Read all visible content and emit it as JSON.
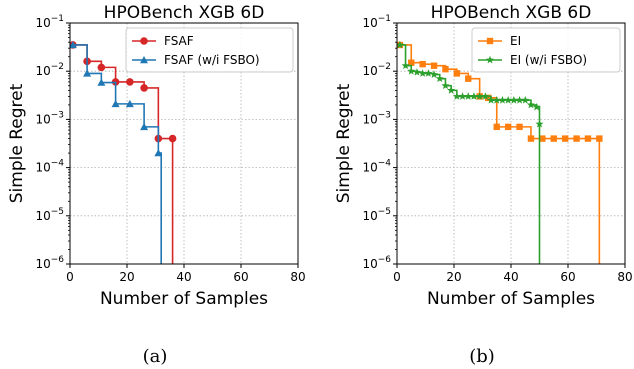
{
  "chart_data": [
    {
      "type": "line",
      "panel": "a",
      "title": "HPOBench XGB 6D",
      "xlabel": "Number of Samples",
      "ylabel": "Simple Regret",
      "xlim": [
        0,
        80
      ],
      "ylim": [
        1e-06,
        0.1
      ],
      "yscale": "log",
      "grid": true,
      "legend_position": "top-right",
      "xticks": [
        "0",
        "20",
        "40",
        "60",
        "80"
      ],
      "yticks": [
        {
          "base": "10",
          "exp": "−1"
        },
        {
          "base": "10",
          "exp": "−2"
        },
        {
          "base": "10",
          "exp": "−3"
        },
        {
          "base": "10",
          "exp": "−4"
        },
        {
          "base": "10",
          "exp": "−5"
        },
        {
          "base": "10",
          "exp": "−6"
        }
      ],
      "caption": "(a)",
      "series": [
        {
          "name": "FSAF",
          "color": "#d62728",
          "marker": "circle",
          "x": [
            1,
            6,
            11,
            16,
            21,
            26,
            31,
            36
          ],
          "y": [
            0.035,
            0.016,
            0.012,
            0.006,
            0.006,
            0.0045,
            0.0004,
            0.0004
          ],
          "drop_to_floor_at": 36
        },
        {
          "name": "FSAF (w/i FSBO)",
          "color": "#1f77b4",
          "marker": "triangle",
          "x": [
            1,
            6,
            11,
            16,
            21,
            26,
            31
          ],
          "y": [
            0.035,
            0.009,
            0.0058,
            0.0021,
            0.0021,
            0.0007,
            0.0002
          ],
          "drop_to_floor_at": 32
        }
      ]
    },
    {
      "type": "line",
      "panel": "b",
      "title": "HPOBench XGB 6D",
      "xlabel": "Number of Samples",
      "ylabel": "Simple Regret",
      "xlim": [
        0,
        80
      ],
      "ylim": [
        1e-06,
        0.1
      ],
      "yscale": "log",
      "grid": true,
      "legend_position": "top-right",
      "xticks": [
        "0",
        "20",
        "40",
        "60",
        "80"
      ],
      "yticks": [
        {
          "base": "10",
          "exp": "−1"
        },
        {
          "base": "10",
          "exp": "−2"
        },
        {
          "base": "10",
          "exp": "−3"
        },
        {
          "base": "10",
          "exp": "−4"
        },
        {
          "base": "10",
          "exp": "−5"
        },
        {
          "base": "10",
          "exp": "−6"
        }
      ],
      "caption": "(b)",
      "series": [
        {
          "name": "EI",
          "color": "#ff7f0e",
          "marker": "square",
          "x": [
            1,
            5,
            9,
            13,
            17,
            21,
            25,
            29,
            32,
            35,
            39,
            43,
            47,
            51,
            55,
            59,
            63,
            67,
            71
          ],
          "y": [
            0.035,
            0.015,
            0.014,
            0.013,
            0.011,
            0.009,
            0.007,
            0.003,
            0.0028,
            0.0007,
            0.0007,
            0.0007,
            0.0004,
            0.0004,
            0.0004,
            0.0004,
            0.0004,
            0.0004,
            0.0004
          ],
          "drop_to_floor_at": 71
        },
        {
          "name": "EI (w/i FSBO)",
          "color": "#2ca02c",
          "marker": "star",
          "x": [
            1,
            3,
            5,
            7,
            9,
            11,
            13,
            15,
            17,
            19,
            21,
            23,
            25,
            27,
            29,
            31,
            33,
            35,
            37,
            39,
            41,
            43,
            45,
            47,
            49,
            50
          ],
          "y": [
            0.035,
            0.013,
            0.01,
            0.0095,
            0.009,
            0.009,
            0.0085,
            0.007,
            0.005,
            0.004,
            0.003,
            0.003,
            0.003,
            0.003,
            0.003,
            0.003,
            0.0025,
            0.0025,
            0.0025,
            0.0025,
            0.0025,
            0.0025,
            0.0025,
            0.002,
            0.0018,
            0.0008
          ],
          "drop_to_floor_at": 50
        }
      ]
    }
  ]
}
